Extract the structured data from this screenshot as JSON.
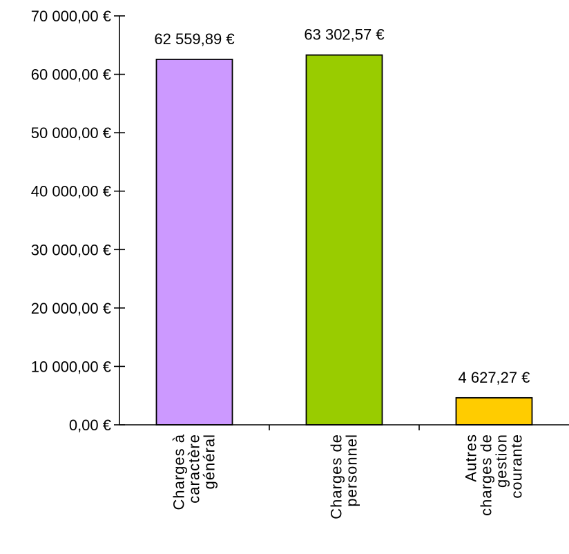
{
  "chart_data": {
    "type": "bar",
    "title": "",
    "xlabel": "",
    "ylabel": "",
    "ylim": [
      0,
      70000
    ],
    "yticks": [
      0,
      10000,
      20000,
      30000,
      40000,
      50000,
      60000,
      70000
    ],
    "ytick_labels": [
      "0,00 €",
      "10 000,00 €",
      "20 000,00 €",
      "30 000,00 €",
      "40 000,00 €",
      "50 000,00 €",
      "60 000,00 €",
      "70 000,00 €"
    ],
    "grid": false,
    "legend": "none",
    "categories": [
      [
        "Charges à",
        "caractère",
        "général"
      ],
      [
        "Charges de",
        "personnel"
      ],
      [
        "Autres",
        "charges de",
        "gestion",
        "courante"
      ]
    ],
    "values": [
      62559.89,
      63302.57,
      4627.27
    ],
    "value_labels": [
      "62 559,89 €",
      "63 302,57 €",
      "4 627,27 €"
    ],
    "colors": [
      "#cc99ff",
      "#99cc00",
      "#ffcc00"
    ]
  }
}
